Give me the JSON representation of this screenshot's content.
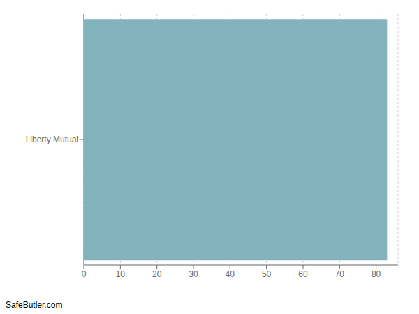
{
  "chart_data": {
    "type": "bar",
    "orientation": "horizontal",
    "categories": [
      "Liberty Mutual"
    ],
    "values": [
      83
    ],
    "color": "#83b3bc",
    "xlim": [
      0,
      86
    ],
    "xticks": [
      0,
      10,
      20,
      30,
      40,
      50,
      60,
      70,
      80
    ],
    "grid": true,
    "annotations": [
      "SafeButler.com"
    ]
  }
}
